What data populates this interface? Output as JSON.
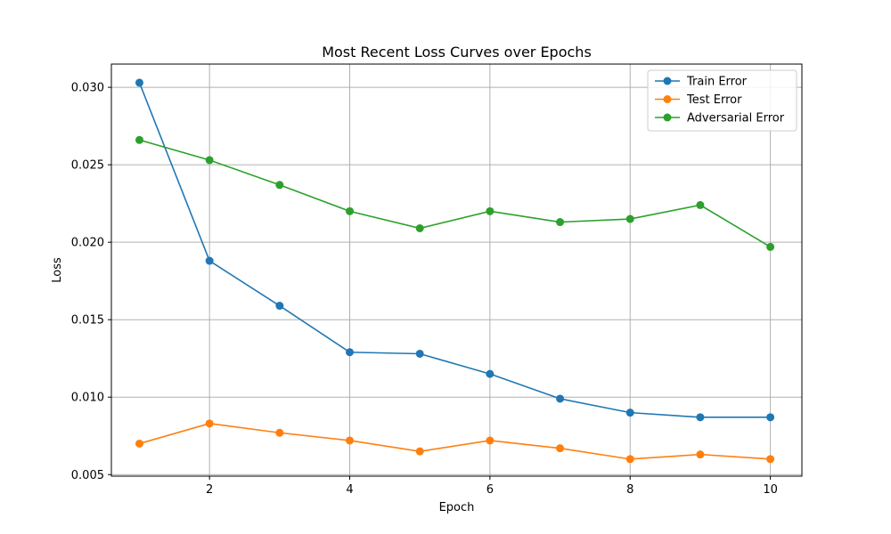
{
  "chart_data": {
    "type": "line",
    "title": "Most Recent Loss Curves over Epochs",
    "xlabel": "Epoch",
    "ylabel": "Loss",
    "x": [
      1,
      2,
      3,
      4,
      5,
      6,
      7,
      8,
      9,
      10
    ],
    "xlim": [
      0.6,
      10.45
    ],
    "ylim": [
      0.0049,
      0.0315
    ],
    "xticks": [
      2,
      4,
      6,
      8,
      10
    ],
    "yticks": [
      0.005,
      0.01,
      0.015,
      0.02,
      0.025,
      0.03
    ],
    "ytick_labels": [
      "0.005",
      "0.010",
      "0.015",
      "0.020",
      "0.025",
      "0.030"
    ],
    "grid": true,
    "legend_position": "top-right",
    "series": [
      {
        "name": "Train Error",
        "color": "#1f77b4",
        "values": [
          0.0303,
          0.0188,
          0.0159,
          0.0129,
          0.0128,
          0.0115,
          0.0099,
          0.009,
          0.0087,
          0.0087
        ]
      },
      {
        "name": "Test Error",
        "color": "#ff7f0e",
        "values": [
          0.007,
          0.0083,
          0.0077,
          0.0072,
          0.0065,
          0.0072,
          0.0067,
          0.006,
          0.0063,
          0.006
        ]
      },
      {
        "name": "Adversarial Error",
        "color": "#2ca02c",
        "values": [
          0.0266,
          0.0253,
          0.0237,
          0.022,
          0.0209,
          0.022,
          0.0213,
          0.0215,
          0.0224,
          0.0197
        ]
      }
    ]
  }
}
